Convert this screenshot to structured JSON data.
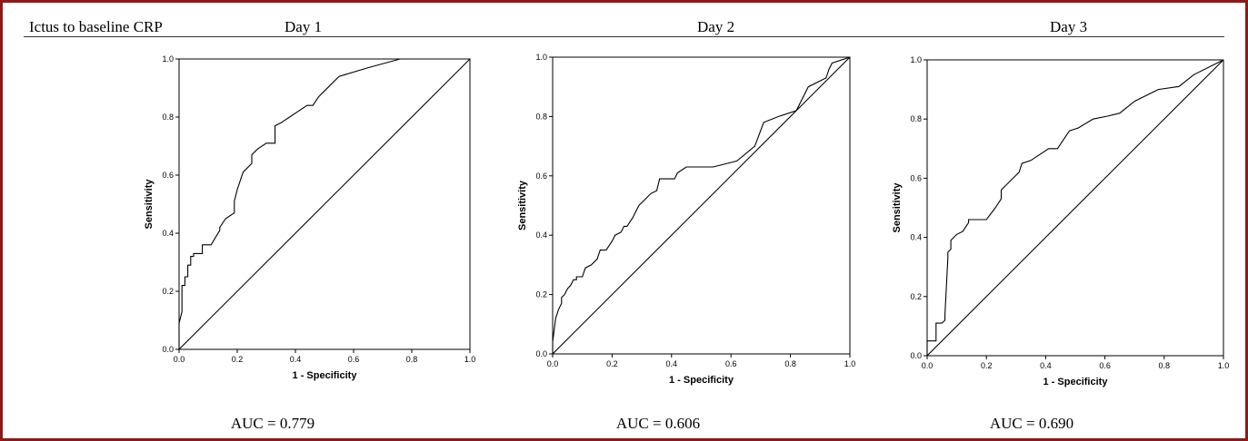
{
  "header": {
    "label": "Ictus to baseline CRP"
  },
  "colors": {
    "frame": "#8b1a1a",
    "ink": "#000000"
  },
  "chart_data": [
    {
      "type": "line",
      "title": "Day 1",
      "xlabel": "1 - Specificity",
      "ylabel": "Sensitivity",
      "xlim": [
        0,
        1
      ],
      "ylim": [
        0,
        1
      ],
      "xticks": [
        "0.0",
        "0.2",
        "0.4",
        "0.6",
        "0.8",
        "1.0"
      ],
      "yticks": [
        "0.0",
        "0.2",
        "0.4",
        "0.6",
        "0.8",
        "1.0"
      ],
      "annotation": "AUC = 0.779",
      "series": [
        {
          "x": [
            0,
            0,
            0.01,
            0.01,
            0.02,
            0.02,
            0.03,
            0.03,
            0.04,
            0.04,
            0.05,
            0.05,
            0.08,
            0.08,
            0.11,
            0.11,
            0.14,
            0.14,
            0.16,
            0.19,
            0.19,
            0.2,
            0.22,
            0.25,
            0.25,
            0.27,
            0.3,
            0.33,
            0.33,
            0.35,
            0.38,
            0.41,
            0.44,
            0.46,
            0.48,
            0.5,
            0.55,
            0.65,
            0.76,
            1.0
          ],
          "y": [
            0,
            0.09,
            0.13,
            0.22,
            0.22,
            0.25,
            0.25,
            0.29,
            0.29,
            0.32,
            0.32,
            0.33,
            0.33,
            0.36,
            0.36,
            0.36,
            0.41,
            0.42,
            0.45,
            0.47,
            0.51,
            0.55,
            0.61,
            0.64,
            0.67,
            0.69,
            0.71,
            0.71,
            0.77,
            0.78,
            0.8,
            0.82,
            0.84,
            0.84,
            0.87,
            0.89,
            0.94,
            0.97,
            1.0,
            1.0
          ]
        },
        {
          "x": [
            0,
            1
          ],
          "y": [
            0,
            1
          ]
        }
      ]
    },
    {
      "type": "line",
      "title": "Day 2",
      "xlabel": "1 - Specificity",
      "ylabel": "Sensitivity",
      "xlim": [
        0,
        1
      ],
      "ylim": [
        0,
        1
      ],
      "xticks": [
        "0.0",
        "0.2",
        "0.4",
        "0.6",
        "0.8",
        "1.0"
      ],
      "yticks": [
        "0.0",
        "0.2",
        "0.4",
        "0.6",
        "0.8",
        "1.0"
      ],
      "annotation": "AUC = 0.606",
      "series": [
        {
          "x": [
            0,
            0,
            0.01,
            0.01,
            0.02,
            0.03,
            0.03,
            0.04,
            0.05,
            0.06,
            0.07,
            0.08,
            0.08,
            0.1,
            0.11,
            0.13,
            0.15,
            0.16,
            0.18,
            0.2,
            0.21,
            0.23,
            0.24,
            0.25,
            0.27,
            0.29,
            0.31,
            0.33,
            0.35,
            0.36,
            0.38,
            0.41,
            0.42,
            0.45,
            0.51,
            0.54,
            0.62,
            0.68,
            0.71,
            0.76,
            0.82,
            0.86,
            0.92,
            0.93,
            0.94,
            1.0
          ],
          "y": [
            0,
            0.04,
            0.12,
            0.12,
            0.15,
            0.17,
            0.19,
            0.2,
            0.22,
            0.23,
            0.25,
            0.25,
            0.26,
            0.26,
            0.29,
            0.3,
            0.32,
            0.35,
            0.35,
            0.38,
            0.4,
            0.41,
            0.43,
            0.43,
            0.46,
            0.5,
            0.52,
            0.54,
            0.55,
            0.59,
            0.59,
            0.59,
            0.61,
            0.63,
            0.63,
            0.63,
            0.65,
            0.7,
            0.78,
            0.8,
            0.82,
            0.9,
            0.93,
            0.96,
            0.98,
            1.0
          ]
        },
        {
          "x": [
            0,
            1
          ],
          "y": [
            0,
            1
          ]
        }
      ]
    },
    {
      "type": "line",
      "title": "Day 3",
      "xlabel": "1 - Specificity",
      "ylabel": "Sensitivity",
      "xlim": [
        0,
        1
      ],
      "ylim": [
        0,
        1
      ],
      "xticks": [
        "0.0",
        "0.2",
        "0.4",
        "0.6",
        "0.8",
        "1.0"
      ],
      "yticks": [
        "0.0",
        "0.2",
        "0.4",
        "0.6",
        "0.8",
        "1.0"
      ],
      "annotation": "AUC = 0.690",
      "series": [
        {
          "x": [
            0,
            0,
            0.03,
            0.03,
            0.05,
            0.06,
            0.06,
            0.07,
            0.07,
            0.08,
            0.08,
            0.1,
            0.12,
            0.14,
            0.14,
            0.17,
            0.2,
            0.23,
            0.25,
            0.25,
            0.27,
            0.29,
            0.31,
            0.32,
            0.35,
            0.38,
            0.41,
            0.44,
            0.48,
            0.51,
            0.56,
            0.61,
            0.65,
            0.7,
            0.78,
            0.85,
            0.9,
            1.0
          ],
          "y": [
            0,
            0.05,
            0.05,
            0.11,
            0.11,
            0.12,
            0.14,
            0.33,
            0.35,
            0.36,
            0.39,
            0.41,
            0.42,
            0.45,
            0.46,
            0.46,
            0.46,
            0.5,
            0.53,
            0.56,
            0.58,
            0.6,
            0.62,
            0.65,
            0.66,
            0.68,
            0.7,
            0.7,
            0.76,
            0.77,
            0.8,
            0.81,
            0.82,
            0.86,
            0.9,
            0.91,
            0.95,
            1.0
          ]
        },
        {
          "x": [
            0,
            1
          ],
          "y": [
            0,
            1
          ]
        }
      ]
    }
  ]
}
